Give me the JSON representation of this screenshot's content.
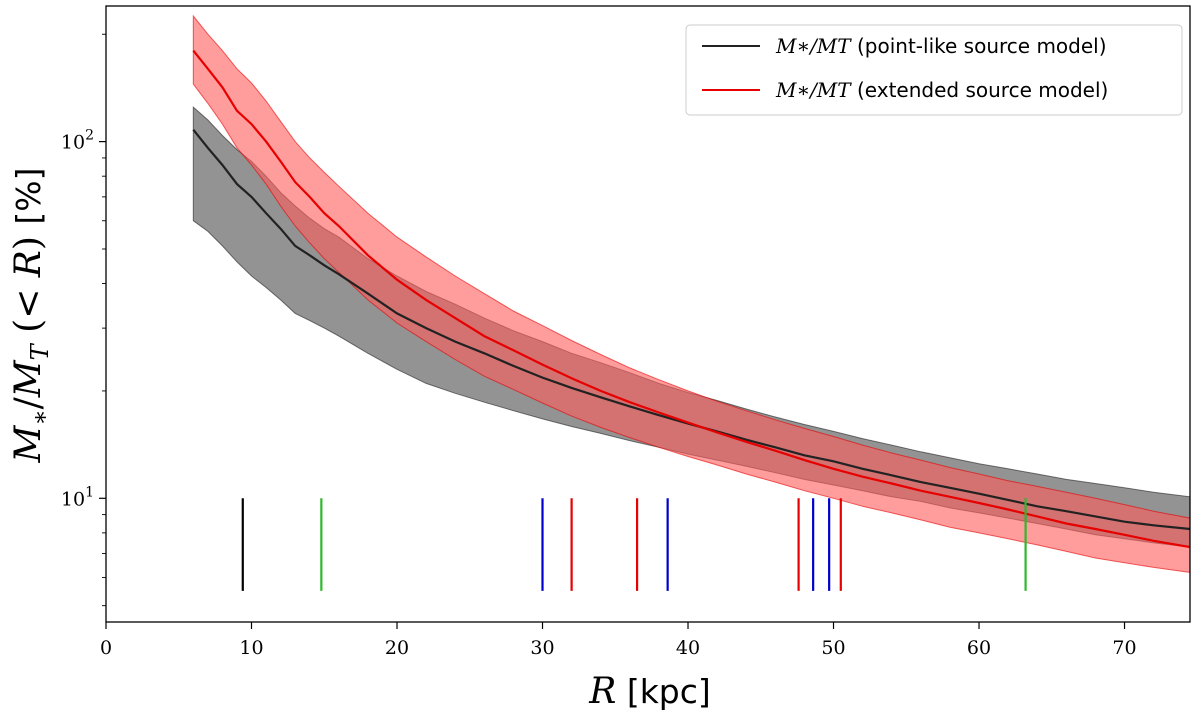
{
  "chart_data": {
    "type": "line",
    "title": "",
    "xlabel": "R [kpc]",
    "ylabel": "M*/MT (< R) [%]",
    "xlim": [
      0,
      74.5
    ],
    "ylim": [
      4.5,
      240
    ],
    "yscale": "log",
    "x_ticks": [
      0,
      10,
      20,
      30,
      40,
      50,
      60,
      70
    ],
    "y_ticks": [
      {
        "value": 10,
        "label": "10^1"
      },
      {
        "value": 100,
        "label": "10^2"
      }
    ],
    "legend_position": "top-right",
    "x": [
      6,
      7,
      8,
      9,
      10,
      11,
      12,
      13,
      14,
      15,
      16,
      18,
      20,
      22,
      24,
      26,
      28,
      30,
      32,
      34,
      36,
      38,
      40,
      42,
      44,
      46,
      48,
      50,
      52,
      54,
      56,
      58,
      60,
      62,
      64,
      66,
      68,
      70,
      72,
      74.5
    ],
    "series": [
      {
        "name": "M*/MT (point-like source model)",
        "legend_math": "M∗/MT",
        "legend_note": "(point-like source model)",
        "color": "#222222",
        "band_color": "#808080",
        "values": [
          108,
          96,
          86,
          76,
          70,
          63,
          57,
          51,
          48,
          45,
          42.5,
          37.5,
          33,
          30,
          27.5,
          25.5,
          23.5,
          21.8,
          20.4,
          19.2,
          18.1,
          17.1,
          16.2,
          15.4,
          14.6,
          13.9,
          13.2,
          12.7,
          12.1,
          11.6,
          11.1,
          10.7,
          10.3,
          9.9,
          9.5,
          9.2,
          8.9,
          8.6,
          8.4,
          8.2
        ],
        "lower": [
          60,
          56,
          51,
          46,
          42,
          39,
          36,
          33,
          31.5,
          30,
          28.5,
          25.5,
          23,
          21,
          19.7,
          18.6,
          17.6,
          16.7,
          15.9,
          15.2,
          14.5,
          13.9,
          13.3,
          12.8,
          12.3,
          11.8,
          11.3,
          10.9,
          10.5,
          10.1,
          9.8,
          9.4,
          9.1,
          8.8,
          8.5,
          8.2,
          7.9,
          7.7,
          7.5,
          7.3
        ],
        "upper": [
          125,
          115,
          104,
          95,
          88,
          80,
          72,
          66,
          61,
          57,
          54,
          47,
          42,
          38,
          35,
          32,
          29.5,
          27.5,
          25.5,
          24,
          22.5,
          21,
          19.8,
          18.8,
          17.8,
          16.9,
          16.1,
          15.4,
          14.7,
          14.1,
          13.5,
          13,
          12.5,
          12.1,
          11.7,
          11.3,
          11,
          10.7,
          10.4,
          10.1
        ]
      },
      {
        "name": "M*/MT (extended source model)",
        "legend_math": "M∗/MT",
        "legend_note": "(extended source model)",
        "color": "#e60000",
        "band_color": "#ff5a5a",
        "values": [
          180,
          160,
          142,
          122,
          112,
          100,
          88,
          77,
          70,
          63,
          58,
          48,
          41,
          36,
          32,
          28.5,
          26,
          23.7,
          21.7,
          20,
          18.6,
          17.4,
          16.3,
          15.3,
          14.4,
          13.6,
          12.8,
          12.1,
          11.5,
          11,
          10.5,
          10.1,
          9.7,
          9.3,
          8.9,
          8.5,
          8.2,
          7.9,
          7.6,
          7.3
        ],
        "lower": [
          145,
          128,
          112,
          96,
          86,
          76,
          66,
          58,
          52,
          47,
          43,
          36,
          31,
          27.5,
          24.5,
          22,
          20.2,
          18.5,
          17,
          15.8,
          14.8,
          13.9,
          13.1,
          12.4,
          11.7,
          11.1,
          10.5,
          10,
          9.5,
          9.1,
          8.7,
          8.3,
          8,
          7.7,
          7.4,
          7.1,
          6.8,
          6.6,
          6.4,
          6.2
        ],
        "upper": [
          225,
          200,
          180,
          160,
          146,
          130,
          114,
          100,
          90,
          82,
          75,
          63,
          54,
          47.5,
          42,
          37.5,
          33.5,
          30.5,
          27.7,
          25.3,
          23.2,
          21.5,
          20,
          18.7,
          17.6,
          16.6,
          15.7,
          14.9,
          14.1,
          13.4,
          12.8,
          12.2,
          11.7,
          11.2,
          10.8,
          10.4,
          10,
          9.6,
          9.2,
          8.8
        ]
      }
    ],
    "markers": [
      {
        "x": 9.4,
        "color": "#000000"
      },
      {
        "x": 14.8,
        "color": "#2eb82e"
      },
      {
        "x": 30.0,
        "color": "#0000cc"
      },
      {
        "x": 32.0,
        "color": "#e60000"
      },
      {
        "x": 36.5,
        "color": "#e60000"
      },
      {
        "x": 38.6,
        "color": "#0000cc"
      },
      {
        "x": 47.6,
        "color": "#e60000"
      },
      {
        "x": 48.6,
        "color": "#0000cc"
      },
      {
        "x": 49.7,
        "color": "#0000cc"
      },
      {
        "x": 50.5,
        "color": "#e60000"
      },
      {
        "x": 63.2,
        "color": "#2eb82e"
      }
    ],
    "marker_range": [
      5.5,
      10
    ]
  }
}
